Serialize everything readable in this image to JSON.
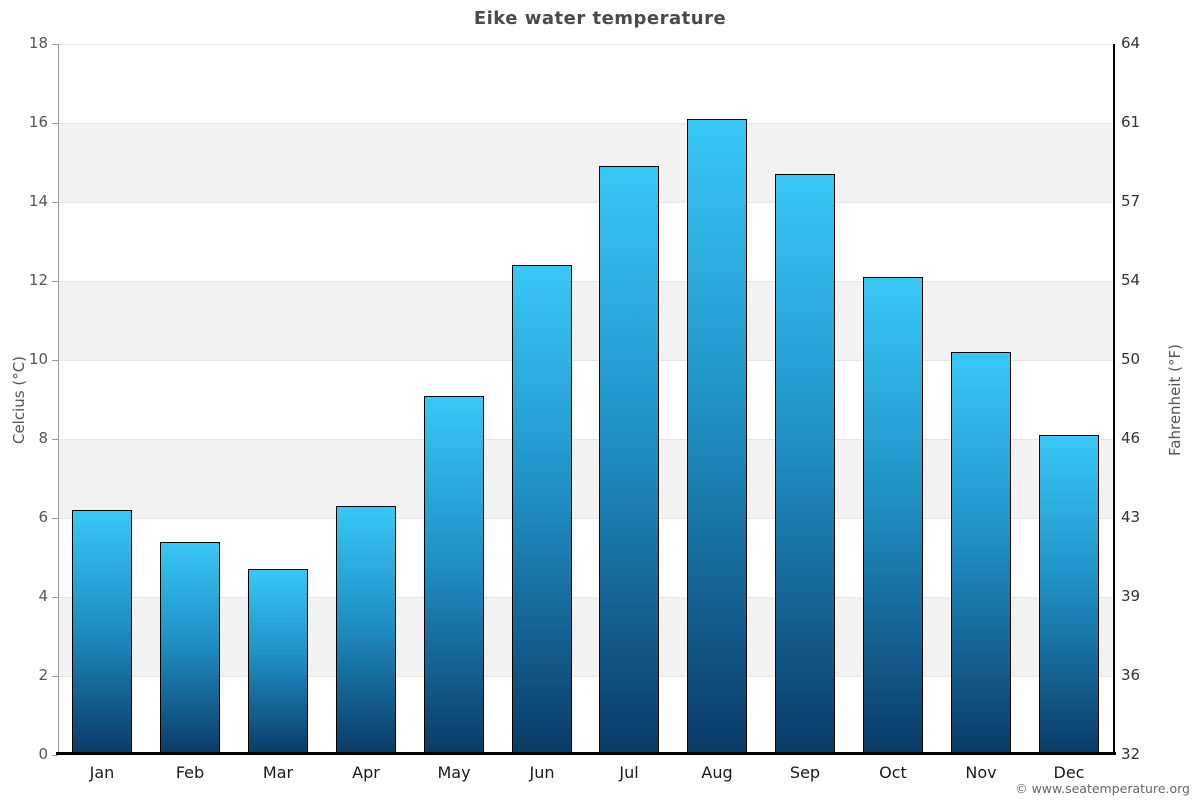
{
  "chart": {
    "title": "Eike water temperature",
    "y_left_title": "Celcius (°C)",
    "y_right_title": "Fahrenheit (°F)",
    "footer": "© www.seatemperature.org"
  },
  "chart_data": {
    "type": "bar",
    "title": "Eike water temperature",
    "categories": [
      "Jan",
      "Feb",
      "Mar",
      "Apr",
      "May",
      "Jun",
      "Jul",
      "Aug",
      "Sep",
      "Oct",
      "Nov",
      "Dec"
    ],
    "values": [
      6.2,
      5.4,
      4.7,
      6.3,
      9.1,
      12.4,
      14.9,
      16.1,
      14.7,
      12.1,
      10.2,
      8.1
    ],
    "series_name": "Water temperature",
    "xlabel": "",
    "ylabel_left": "Celcius (°C)",
    "ylabel_right": "Fahrenheit (°F)",
    "ylim": [
      0,
      18
    ],
    "yticks_celsius": [
      0,
      2,
      4,
      6,
      8,
      10,
      12,
      14,
      16,
      18
    ],
    "yticks_fahrenheit": [
      32,
      36,
      39,
      43,
      46,
      50,
      54,
      57,
      61,
      64
    ],
    "legend": "none",
    "grid": "alternating-horizontal-bands",
    "band_color": "#f2f2f2",
    "gridline_color": "#e6e6e6",
    "bar_gradient_top": "#38c8f5",
    "bar_gradient_bottom": "#0a3a66",
    "bar_border_color": "#000000",
    "annotation": "© www.seatemperature.org"
  }
}
